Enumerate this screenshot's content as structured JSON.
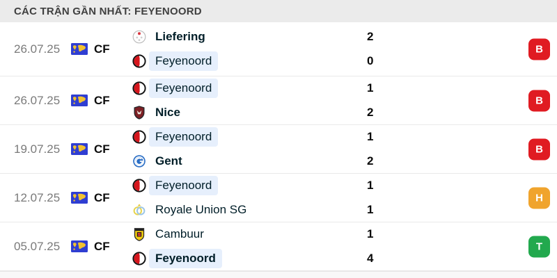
{
  "header": {
    "title": "CÁC TRẬN GẦN NHẤT: FEYENOORD"
  },
  "colors": {
    "header_bg": "#ebebeb",
    "highlight_bg": "#e6effc",
    "badge_loss": "#e01b22",
    "badge_draw": "#f0a42d",
    "badge_win": "#22a94e",
    "flag_blue": "#2f3ed2",
    "flag_yellow": "#f2c230"
  },
  "matches": [
    {
      "date": "26.07.25",
      "competition": {
        "code": "CF",
        "icon": "world-flag-icon"
      },
      "teams": [
        {
          "name": "Liefering",
          "logo": "liefering",
          "score": "2",
          "winner": true,
          "highlighted": false
        },
        {
          "name": "Feyenoord",
          "logo": "feyenoord",
          "score": "0",
          "winner": false,
          "highlighted": true
        }
      ],
      "result": {
        "label": "B",
        "type": "loss"
      }
    },
    {
      "date": "26.07.25",
      "competition": {
        "code": "CF",
        "icon": "world-flag-icon"
      },
      "teams": [
        {
          "name": "Feyenoord",
          "logo": "feyenoord",
          "score": "1",
          "winner": false,
          "highlighted": true
        },
        {
          "name": "Nice",
          "logo": "nice",
          "score": "2",
          "winner": true,
          "highlighted": false
        }
      ],
      "result": {
        "label": "B",
        "type": "loss"
      }
    },
    {
      "date": "19.07.25",
      "competition": {
        "code": "CF",
        "icon": "world-flag-icon"
      },
      "teams": [
        {
          "name": "Feyenoord",
          "logo": "feyenoord",
          "score": "1",
          "winner": false,
          "highlighted": true
        },
        {
          "name": "Gent",
          "logo": "gent",
          "score": "2",
          "winner": true,
          "highlighted": false
        }
      ],
      "result": {
        "label": "B",
        "type": "loss"
      }
    },
    {
      "date": "12.07.25",
      "competition": {
        "code": "CF",
        "icon": "world-flag-icon"
      },
      "teams": [
        {
          "name": "Feyenoord",
          "logo": "feyenoord",
          "score": "1",
          "winner": false,
          "highlighted": true
        },
        {
          "name": "Royale Union SG",
          "logo": "royale-union",
          "score": "1",
          "winner": false,
          "highlighted": false
        }
      ],
      "result": {
        "label": "H",
        "type": "draw"
      }
    },
    {
      "date": "05.07.25",
      "competition": {
        "code": "CF",
        "icon": "world-flag-icon"
      },
      "teams": [
        {
          "name": "Cambuur",
          "logo": "cambuur",
          "score": "1",
          "winner": false,
          "highlighted": false
        },
        {
          "name": "Feyenoord",
          "logo": "feyenoord",
          "score": "4",
          "winner": true,
          "highlighted": true
        }
      ],
      "result": {
        "label": "T",
        "type": "win"
      }
    }
  ]
}
